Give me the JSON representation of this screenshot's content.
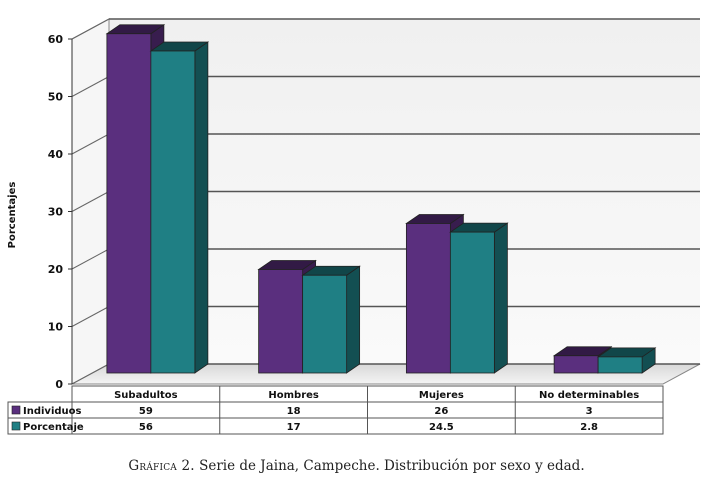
{
  "chart_data": {
    "type": "bar",
    "categories": [
      "Subadultos",
      "Hombres",
      "Mujeres",
      "No determinables"
    ],
    "series": [
      {
        "name": "Individuos",
        "values": [
          59,
          18,
          26,
          3
        ],
        "display": [
          "59",
          "18",
          "26",
          "3"
        ],
        "color": "#5a2f7e"
      },
      {
        "name": "Porcentaje",
        "values": [
          56,
          17,
          24.5,
          2.8
        ],
        "display": [
          "56",
          "17",
          "24.5",
          "2.8"
        ],
        "color": "#1f7f84"
      }
    ],
    "ylabel": "Porcentajes",
    "xlabel": "",
    "ylim": [
      0,
      60
    ],
    "yticks": [
      0,
      10,
      20,
      30,
      40,
      50,
      60
    ],
    "grid": true,
    "legend": "data-table-left"
  },
  "caption": {
    "lead": "Gráfica 2.",
    "text": "Serie de Jaina, Campeche. Distribución por sexo y edad."
  }
}
